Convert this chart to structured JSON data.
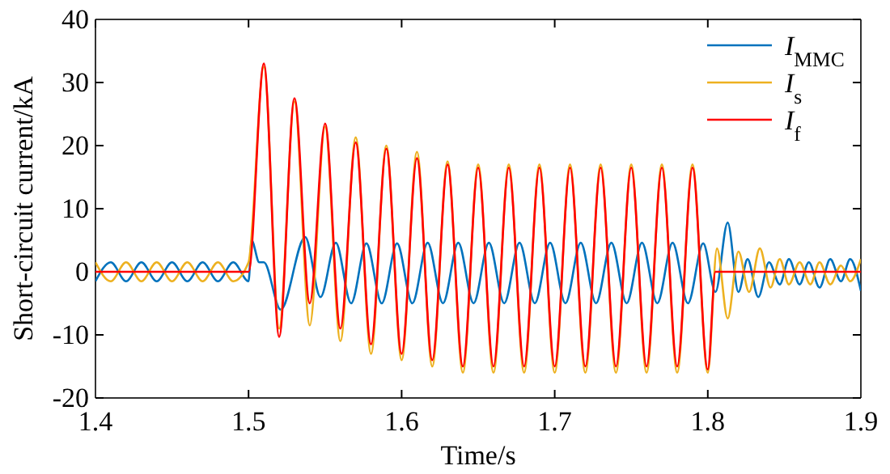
{
  "chart_data": {
    "type": "line",
    "xlabel": "Time/s",
    "ylabel": "Short-circuit current/kA",
    "xlim": [
      1.4,
      1.9
    ],
    "ylim": [
      -20,
      40
    ],
    "xticks": [
      1.4,
      1.5,
      1.6,
      1.7,
      1.8,
      1.9
    ],
    "yticks": [
      -20,
      -10,
      0,
      10,
      20,
      30,
      40
    ],
    "grid": false,
    "legend": "top right",
    "marker": "none",
    "line_style": "solid",
    "series": [
      {
        "name": "I$_{MMC}$",
        "color": "#0072bd",
        "x": [
          1.4,
          1.41,
          1.42,
          1.43,
          1.44,
          1.45,
          1.46,
          1.47,
          1.48,
          1.49,
          1.5,
          1.502,
          1.507,
          1.51,
          1.521,
          1.537,
          1.547,
          1.557,
          1.567,
          1.577,
          1.587,
          1.597,
          1.607,
          1.617,
          1.627,
          1.637,
          1.647,
          1.657,
          1.667,
          1.677,
          1.687,
          1.697,
          1.707,
          1.717,
          1.727,
          1.737,
          1.747,
          1.757,
          1.767,
          1.777,
          1.787,
          1.797,
          1.805,
          1.813,
          1.82,
          1.826,
          1.833,
          1.84,
          1.847,
          1.853,
          1.86,
          1.866,
          1.873,
          1.88,
          1.887,
          1.893,
          1.9
        ],
        "values": [
          -1.5,
          1.5,
          -1.5,
          1.5,
          -1.5,
          1.5,
          -1.5,
          1.5,
          -1.5,
          1.5,
          -1.5,
          5,
          1.5,
          1.5,
          -6,
          5.5,
          -4,
          4.6,
          -5,
          4.5,
          -5,
          4.5,
          -5,
          4.6,
          -5,
          4.6,
          -5,
          4.6,
          -5,
          4.6,
          -5,
          4.6,
          -5,
          4.6,
          -5,
          4.6,
          -5,
          4.6,
          -5,
          4.6,
          -5,
          4.5,
          -3.2,
          7.8,
          -3.2,
          2,
          -4,
          1.5,
          -2,
          2,
          -2,
          1.5,
          -2.5,
          2,
          -1.5,
          2,
          -3
        ]
      },
      {
        "name": "I$_{s}$",
        "color": "#edb120",
        "x": [
          1.4,
          1.41,
          1.42,
          1.43,
          1.44,
          1.45,
          1.46,
          1.47,
          1.48,
          1.49,
          1.5,
          1.51,
          1.52,
          1.53,
          1.54,
          1.55,
          1.56,
          1.57,
          1.58,
          1.59,
          1.6,
          1.61,
          1.62,
          1.63,
          1.64,
          1.65,
          1.66,
          1.67,
          1.68,
          1.69,
          1.7,
          1.71,
          1.72,
          1.73,
          1.74,
          1.75,
          1.76,
          1.77,
          1.78,
          1.79,
          1.8,
          1.806,
          1.813,
          1.82,
          1.827,
          1.834,
          1.841,
          1.847,
          1.853,
          1.86,
          1.867,
          1.873,
          1.88,
          1.887,
          1.893,
          1.9
        ],
        "values": [
          1.5,
          -1.5,
          1.5,
          -1.5,
          1.5,
          -1.5,
          1.5,
          -1.5,
          1.5,
          -1.5,
          1.5,
          32.5,
          -9,
          27,
          -8.5,
          23,
          -11,
          21.3,
          -13,
          20,
          -14,
          19,
          -15,
          17.5,
          -16,
          17,
          -16,
          17,
          -16,
          17,
          -16,
          17,
          -16,
          17,
          -16,
          17,
          -16,
          17,
          -16,
          17,
          -16,
          3.7,
          -7.4,
          3.2,
          -3.2,
          3.7,
          -2.5,
          2,
          -2,
          1.5,
          -2,
          1.5,
          -2,
          1,
          -1.5,
          2
        ]
      },
      {
        "name": "I$_{f}$",
        "color": "#ff0000",
        "x": [
          1.4,
          1.5,
          1.51,
          1.52,
          1.53,
          1.54,
          1.55,
          1.56,
          1.57,
          1.58,
          1.59,
          1.6,
          1.61,
          1.62,
          1.63,
          1.64,
          1.65,
          1.66,
          1.67,
          1.68,
          1.69,
          1.7,
          1.71,
          1.72,
          1.73,
          1.74,
          1.75,
          1.76,
          1.77,
          1.78,
          1.79,
          1.8,
          1.805,
          1.9
        ],
        "values": [
          0,
          0,
          33,
          -10.3,
          27.5,
          -5,
          23.5,
          -9,
          20.5,
          -11.5,
          19.5,
          -13,
          18,
          -14,
          17,
          -15,
          16.5,
          -15,
          16.5,
          -15,
          16.5,
          -15,
          16.5,
          -15,
          16.5,
          -15,
          16.5,
          -15,
          16.5,
          -15,
          16.5,
          -15.5,
          0,
          0
        ]
      }
    ]
  }
}
